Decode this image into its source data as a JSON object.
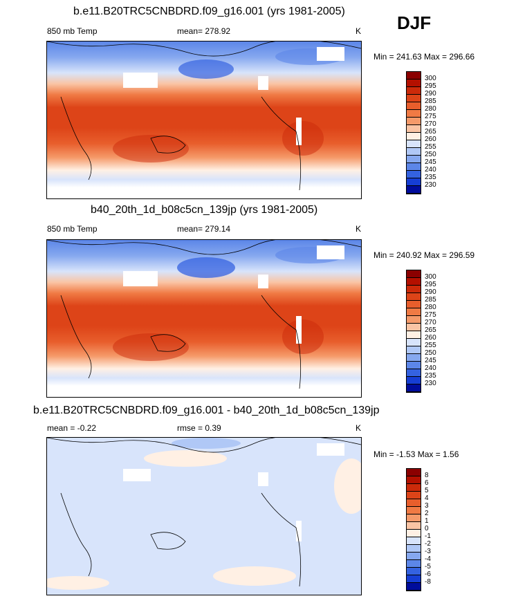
{
  "season": "DJF",
  "panels": [
    {
      "title": "b.e11.B20TRC5CNBDRD.f09_g16.001 (yrs 1981-2005)",
      "left_label": "850 mb Temp",
      "center_label": "mean= 278.92",
      "units": "K",
      "minmax": "Min = 241.63 Max = 296.66"
    },
    {
      "title": "b40_20th_1d_b08c5cn_139jp (yrs 1981-2005)",
      "left_label": "850 mb Temp",
      "center_label": "mean= 279.14",
      "units": "K",
      "minmax": "Min = 240.92 Max = 296.59"
    },
    {
      "title": "b.e11.B20TRC5CNBDRD.f09_g16.001 - b40_20th_1d_b08c5cn_139jp",
      "left_label": "mean =  -0.22",
      "center_label": "rmse =   0.39",
      "units": "K",
      "minmax": "Min =  -1.53 Max =   1.56"
    }
  ],
  "colorbars": {
    "abs": {
      "labels": [
        "300",
        "295",
        "290",
        "285",
        "280",
        "275",
        "270",
        "265",
        "260",
        "255",
        "250",
        "245",
        "240",
        "235",
        "230"
      ],
      "colors": [
        "#8b0000",
        "#b41000",
        "#cc2a0a",
        "#dd4418",
        "#e85e2c",
        "#f07a44",
        "#f59a6a",
        "#fac4a4",
        "#fff0e4",
        "#d8e4fb",
        "#b0c8f6",
        "#86a8ef",
        "#5c86e8",
        "#3462e0",
        "#163ed4",
        "#000c9c"
      ]
    },
    "diff": {
      "labels": [
        "8",
        "6",
        "5",
        "4",
        "3",
        "2",
        "1",
        "0",
        "-1",
        "-2",
        "-3",
        "-4",
        "-5",
        "-6",
        "-8"
      ],
      "colors": [
        "#8b0000",
        "#b41000",
        "#cc2a0a",
        "#dd4418",
        "#e85e2c",
        "#f07a44",
        "#f59a6a",
        "#fac4a4",
        "#fff0e4",
        "#d8e4fb",
        "#b0c8f6",
        "#86a8ef",
        "#5c86e8",
        "#3462e0",
        "#163ed4",
        "#000c9c"
      ]
    }
  },
  "chart_data": [
    {
      "type": "heatmap",
      "title": "b.e11.B20TRC5CNBDRD.f09_g16.001 (yrs 1981-2005)",
      "variable": "850 mb Temp",
      "units": "K",
      "mean": 278.92,
      "min": 241.63,
      "max": 296.66,
      "contour_levels": [
        230,
        235,
        240,
        245,
        250,
        255,
        260,
        265,
        270,
        275,
        280,
        285,
        290,
        295,
        300
      ]
    },
    {
      "type": "heatmap",
      "title": "b40_20th_1d_b08c5cn_139jp (yrs 1981-2005)",
      "variable": "850 mb Temp",
      "units": "K",
      "mean": 279.14,
      "min": 240.92,
      "max": 296.59,
      "contour_levels": [
        230,
        235,
        240,
        245,
        250,
        255,
        260,
        265,
        270,
        275,
        280,
        285,
        290,
        295,
        300
      ]
    },
    {
      "type": "heatmap",
      "title": "b.e11.B20TRC5CNBDRD.f09_g16.001 - b40_20th_1d_b08c5cn_139jp",
      "units": "K",
      "mean": -0.22,
      "rmse": 0.39,
      "min": -1.53,
      "max": 1.56,
      "contour_levels": [
        -8,
        -6,
        -5,
        -4,
        -3,
        -2,
        -1,
        0,
        1,
        2,
        3,
        4,
        5,
        6,
        8
      ]
    }
  ]
}
